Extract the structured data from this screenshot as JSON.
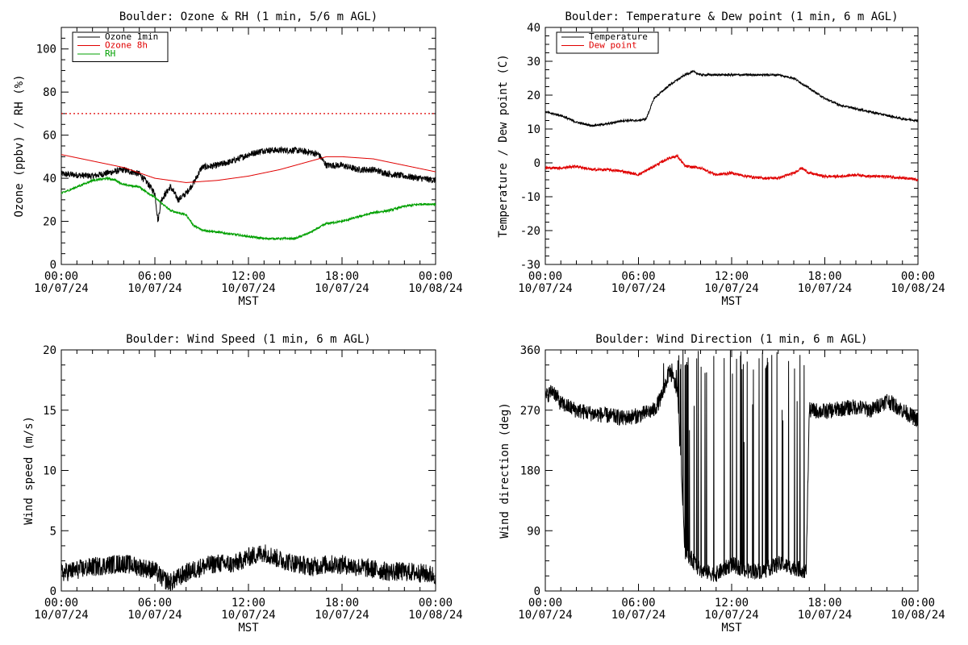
{
  "chart_data": [
    {
      "type": "line",
      "title": "Boulder: Ozone & RH (1 min, 5/6 m AGL)",
      "xlabel": "MST",
      "ylabel": "Ozone (ppbv) / RH (%)",
      "xlim": [
        0,
        24
      ],
      "ylim": [
        0,
        110
      ],
      "x_ticks": [
        {
          "time": "00:00",
          "date": "10/07/24"
        },
        {
          "time": "06:00",
          "date": "10/07/24"
        },
        {
          "time": "12:00",
          "date": "10/07/24"
        },
        {
          "time": "18:00",
          "date": "10/07/24"
        },
        {
          "time": "00:00",
          "date": "10/08/24"
        }
      ],
      "y_ticks": [
        0,
        20,
        40,
        60,
        80,
        100
      ],
      "reference_line": {
        "y": 70,
        "color": "#e00000",
        "style": "dotted"
      },
      "legend": {
        "placement": "top-left"
      },
      "series": [
        {
          "name": "Ozone 1min",
          "color": "#000000",
          "noise": 1.5,
          "points": [
            [
              0,
              42
            ],
            [
              2,
              41
            ],
            [
              4,
              44
            ],
            [
              5,
              42
            ],
            [
              5.5,
              38
            ],
            [
              6,
              33
            ],
            [
              6.2,
              20
            ],
            [
              6.4,
              30
            ],
            [
              7,
              36
            ],
            [
              7.5,
              30
            ],
            [
              8,
              33
            ],
            [
              8.5,
              38
            ],
            [
              9,
              45
            ],
            [
              10,
              46
            ],
            [
              11,
              48
            ],
            [
              12,
              51
            ],
            [
              13,
              53
            ],
            [
              14,
              53
            ],
            [
              15,
              53
            ],
            [
              16,
              52
            ],
            [
              16.5,
              51
            ],
            [
              17,
              46
            ],
            [
              18,
              46
            ],
            [
              19,
              44
            ],
            [
              20,
              44
            ],
            [
              21,
              42
            ],
            [
              22,
              41
            ],
            [
              23,
              40
            ],
            [
              24,
              39
            ]
          ]
        },
        {
          "name": "Ozone 8h",
          "color": "#e00000",
          "noise": 0,
          "points": [
            [
              0,
              51
            ],
            [
              2,
              48
            ],
            [
              4,
              45
            ],
            [
              6,
              40
            ],
            [
              8,
              38
            ],
            [
              10,
              39
            ],
            [
              12,
              41
            ],
            [
              14,
              44
            ],
            [
              16,
              48
            ],
            [
              17,
              50
            ],
            [
              18,
              50
            ],
            [
              20,
              49
            ],
            [
              22,
              46
            ],
            [
              24,
              43
            ]
          ]
        },
        {
          "name": "RH",
          "color": "#00a000",
          "noise": 0.5,
          "points": [
            [
              0,
              33
            ],
            [
              1,
              36
            ],
            [
              2,
              39
            ],
            [
              3,
              40
            ],
            [
              3.5,
              39
            ],
            [
              4,
              37
            ],
            [
              5,
              36
            ],
            [
              6,
              31
            ],
            [
              7,
              25
            ],
            [
              8,
              23
            ],
            [
              8.5,
              18
            ],
            [
              9,
              16
            ],
            [
              10,
              15
            ],
            [
              11,
              14
            ],
            [
              12,
              13
            ],
            [
              13,
              12
            ],
            [
              14,
              12
            ],
            [
              15,
              12
            ],
            [
              16,
              15
            ],
            [
              17,
              19
            ],
            [
              18,
              20
            ],
            [
              19,
              22
            ],
            [
              20,
              24
            ],
            [
              21,
              25
            ],
            [
              22,
              27
            ],
            [
              23,
              28
            ],
            [
              24,
              28
            ]
          ]
        }
      ]
    },
    {
      "type": "line",
      "title": "Boulder: Temperature & Dew point (1 min, 6 m AGL)",
      "xlabel": "MST",
      "ylabel": "Temperature / Dew point (C)",
      "xlim": [
        0,
        24
      ],
      "ylim": [
        -30,
        40
      ],
      "x_ticks": [
        {
          "time": "00:00",
          "date": "10/07/24"
        },
        {
          "time": "06:00",
          "date": "10/07/24"
        },
        {
          "time": "12:00",
          "date": "10/07/24"
        },
        {
          "time": "18:00",
          "date": "10/07/24"
        },
        {
          "time": "00:00",
          "date": "10/08/24"
        }
      ],
      "y_ticks": [
        -30,
        -20,
        -10,
        0,
        10,
        20,
        30,
        40
      ],
      "legend": {
        "placement": "top-left"
      },
      "series": [
        {
          "name": "Temperature",
          "color": "#000000",
          "noise": 0.3,
          "points": [
            [
              0,
              15
            ],
            [
              1,
              14
            ],
            [
              2,
              12
            ],
            [
              3,
              11
            ],
            [
              4,
              11.5
            ],
            [
              5,
              12.5
            ],
            [
              6,
              12.5
            ],
            [
              6.5,
              13
            ],
            [
              7,
              19
            ],
            [
              8,
              23
            ],
            [
              9,
              26
            ],
            [
              9.5,
              27
            ],
            [
              10,
              26
            ],
            [
              11,
              26
            ],
            [
              12,
              26
            ],
            [
              13,
              26
            ],
            [
              14,
              26
            ],
            [
              15,
              26
            ],
            [
              16,
              25
            ],
            [
              17,
              22
            ],
            [
              18,
              19
            ],
            [
              19,
              17
            ],
            [
              20,
              16
            ],
            [
              21,
              15
            ],
            [
              22,
              14
            ],
            [
              23,
              13
            ],
            [
              24,
              12.5
            ]
          ]
        },
        {
          "name": "Dew point",
          "color": "#e00000",
          "noise": 0.4,
          "points": [
            [
              0,
              -1.5
            ],
            [
              1,
              -1.5
            ],
            [
              2,
              -1
            ],
            [
              3,
              -2
            ],
            [
              4,
              -2
            ],
            [
              5,
              -2.5
            ],
            [
              6,
              -3.5
            ],
            [
              7,
              -1
            ],
            [
              8,
              1.5
            ],
            [
              8.5,
              2
            ],
            [
              9,
              -1
            ],
            [
              10,
              -1.5
            ],
            [
              11,
              -3.5
            ],
            [
              12,
              -3
            ],
            [
              13,
              -4
            ],
            [
              14,
              -4.5
            ],
            [
              15,
              -4.5
            ],
            [
              16,
              -3
            ],
            [
              16.5,
              -1.5
            ],
            [
              17,
              -3
            ],
            [
              18,
              -4
            ],
            [
              19,
              -4
            ],
            [
              20,
              -3.5
            ],
            [
              21,
              -4
            ],
            [
              22,
              -4
            ],
            [
              23,
              -4.5
            ],
            [
              24,
              -5
            ]
          ]
        }
      ]
    },
    {
      "type": "line",
      "title": "Boulder: Wind Speed (1 min, 6 m AGL)",
      "xlabel": "MST",
      "ylabel": "Wind speed (m/s)",
      "xlim": [
        0,
        24
      ],
      "ylim": [
        0,
        20
      ],
      "x_ticks": [
        {
          "time": "00:00",
          "date": "10/07/24"
        },
        {
          "time": "06:00",
          "date": "10/07/24"
        },
        {
          "time": "12:00",
          "date": "10/07/24"
        },
        {
          "time": "18:00",
          "date": "10/07/24"
        },
        {
          "time": "00:00",
          "date": "10/08/24"
        }
      ],
      "y_ticks": [
        0,
        5,
        10,
        15,
        20
      ],
      "series": [
        {
          "color": "#000000",
          "noise": 0.8,
          "points": [
            [
              0,
              1.5
            ],
            [
              2,
              2
            ],
            [
              4,
              2.3
            ],
            [
              5,
              2
            ],
            [
              6,
              1.7
            ],
            [
              6.5,
              1
            ],
            [
              7,
              0.7
            ],
            [
              8,
              1.5
            ],
            [
              9,
              2
            ],
            [
              10,
              2.3
            ],
            [
              11,
              2.2
            ],
            [
              12,
              2.8
            ],
            [
              13,
              3.2
            ],
            [
              14,
              2.6
            ],
            [
              15,
              2.3
            ],
            [
              16,
              2
            ],
            [
              17,
              2.2
            ],
            [
              18,
              2.2
            ],
            [
              19,
              2
            ],
            [
              20,
              1.8
            ],
            [
              21,
              1.6
            ],
            [
              22,
              1.6
            ],
            [
              23,
              1.5
            ],
            [
              24,
              1.3
            ]
          ]
        }
      ]
    },
    {
      "type": "line",
      "title": "Boulder: Wind Direction (1 min, 6 m AGL)",
      "xlabel": "MST",
      "ylabel": "Wind direction (deg)",
      "xlim": [
        0,
        24
      ],
      "ylim": [
        0,
        360
      ],
      "x_ticks": [
        {
          "time": "00:00",
          "date": "10/07/24"
        },
        {
          "time": "06:00",
          "date": "10/07/24"
        },
        {
          "time": "12:00",
          "date": "10/07/24"
        },
        {
          "time": "18:00",
          "date": "10/07/24"
        },
        {
          "time": "00:00",
          "date": "10/08/24"
        }
      ],
      "y_ticks": [
        0,
        90,
        180,
        270,
        360
      ],
      "series": [
        {
          "color": "#000000",
          "noise": 12,
          "wrap_between": [
            7.5,
            16.8
          ],
          "points": [
            [
              0,
              290
            ],
            [
              0.5,
              300
            ],
            [
              1,
              280
            ],
            [
              2,
              270
            ],
            [
              3,
              265
            ],
            [
              4,
              262
            ],
            [
              5,
              258
            ],
            [
              6,
              262
            ],
            [
              7,
              270
            ],
            [
              7.5,
              290
            ],
            [
              8,
              330
            ],
            [
              8.5,
              300
            ],
            [
              9,
              60
            ],
            [
              10,
              30
            ],
            [
              11,
              25
            ],
            [
              12,
              40
            ],
            [
              13,
              30
            ],
            [
              14,
              30
            ],
            [
              15,
              40
            ],
            [
              16,
              35
            ],
            [
              16.8,
              30
            ],
            [
              17,
              270
            ],
            [
              18,
              268
            ],
            [
              19,
              272
            ],
            [
              20,
              275
            ],
            [
              21,
              270
            ],
            [
              22,
              285
            ],
            [
              23,
              270
            ],
            [
              24,
              255
            ]
          ]
        }
      ]
    }
  ]
}
